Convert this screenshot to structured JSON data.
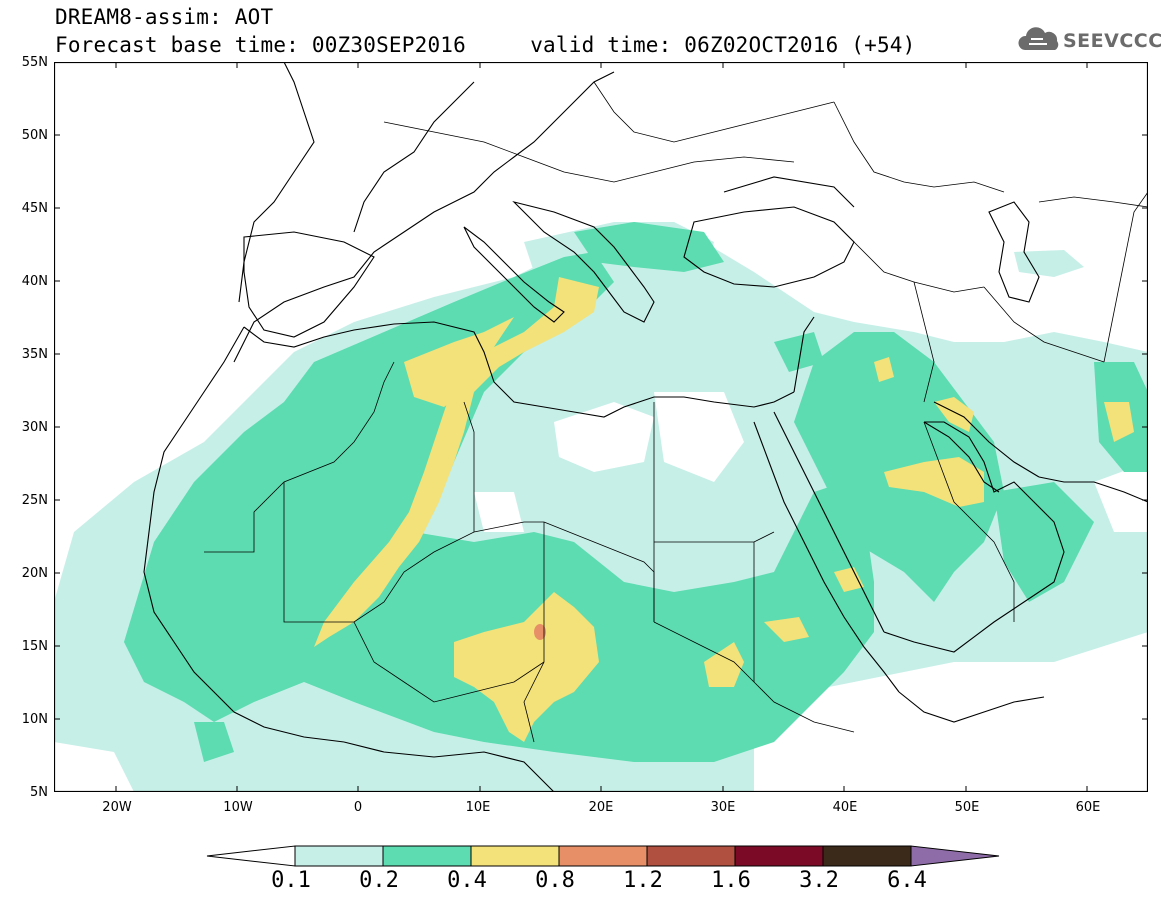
{
  "header": {
    "title_line1": "DREAM8-assim: AOT",
    "title_line2": "Forecast base time: 00Z30SEP2016     valid time: 06Z02OCT2016 (+54)",
    "brand": "SEEVCCC"
  },
  "map": {
    "lon_range": [
      -25,
      65
    ],
    "lat_range": [
      5,
      55
    ],
    "lat_labels": [
      "55N",
      "50N",
      "45N",
      "40N",
      "35N",
      "30N",
      "25N",
      "20N",
      "15N",
      "10N",
      "5N"
    ],
    "lon_labels": [
      "20W",
      "10W",
      "0",
      "10E",
      "20E",
      "30E",
      "40E",
      "50E",
      "60E"
    ],
    "colors": {
      "0.1-0.2": "#c6efe8",
      "0.2-0.4": "#5cdcb0",
      "0.4-0.8": "#f3e279",
      "0.8-1.2": "#e79067"
    }
  },
  "colorbar": {
    "labels": [
      "0.1",
      "0.2",
      "0.4",
      "0.8",
      "1.2",
      "1.6",
      "3.2",
      "6.4"
    ],
    "colors": [
      "#ffffff",
      "#c6efe8",
      "#5cdcb0",
      "#f3e279",
      "#e79067",
      "#b05040",
      "#7b0a26",
      "#3b2a1a",
      "#8e6ca8"
    ]
  }
}
